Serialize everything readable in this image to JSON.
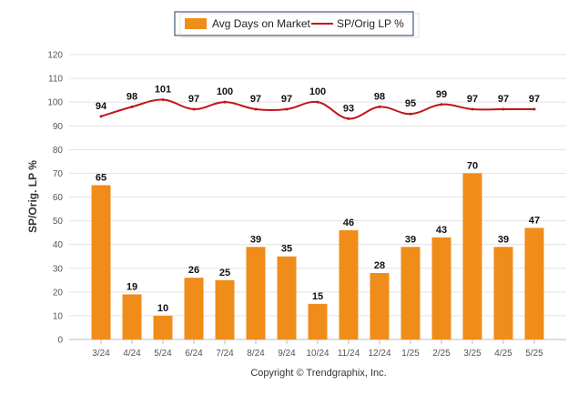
{
  "chart_data": {
    "type": "bar",
    "categories": [
      "3/24",
      "4/24",
      "5/24",
      "6/24",
      "7/24",
      "8/24",
      "9/24",
      "10/24",
      "11/24",
      "12/24",
      "1/25",
      "2/25",
      "3/25",
      "4/25",
      "5/25"
    ],
    "series": [
      {
        "name": "Avg Days on Market",
        "type": "bar",
        "color": "#f08c1a",
        "values": [
          65,
          19,
          10,
          26,
          25,
          39,
          35,
          15,
          46,
          28,
          39,
          43,
          70,
          39,
          47
        ]
      },
      {
        "name": "SP/Orig LP %",
        "type": "line",
        "color": "#c0151b",
        "values": [
          94,
          98,
          101,
          97,
          100,
          97,
          97,
          100,
          93,
          98,
          95,
          99,
          97,
          97,
          97
        ]
      }
    ],
    "ylabel": "SP/Orig. LP %",
    "xlabel": "",
    "ylim": [
      0,
      120
    ],
    "yticks": [
      0,
      10,
      20,
      30,
      40,
      50,
      60,
      70,
      80,
      90,
      100,
      110,
      120
    ],
    "grid": true,
    "legend_position": "top-center"
  },
  "footer": {
    "copyright": "Copyright © Trendgraphix, Inc."
  }
}
